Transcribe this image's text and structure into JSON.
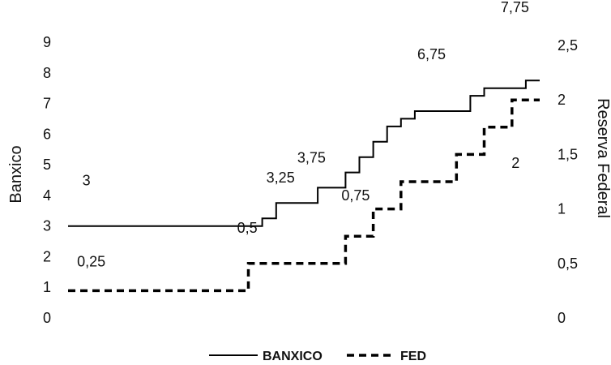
{
  "chart_data": {
    "type": "line",
    "ylabel_left": "Banxico",
    "ylabel_right": "Reserva Federal",
    "left_ticks": [
      "0",
      "1",
      "2",
      "3",
      "4",
      "5",
      "6",
      "7",
      "8",
      "9"
    ],
    "right_ticks": [
      "0",
      "0,5",
      "1",
      "1,5",
      "2",
      "2,5"
    ],
    "ylim_left": [
      0,
      9
    ],
    "ylim_right": [
      0,
      2.5
    ],
    "grid": false,
    "legend_position": "bottom",
    "x_steps": 34,
    "series": [
      {
        "name": "BANXICO",
        "axis": "left",
        "style": "solid",
        "color": "#000000",
        "values": [
          3,
          3,
          3,
          3,
          3,
          3,
          3,
          3,
          3,
          3,
          3,
          3,
          3,
          3,
          3.25,
          3.75,
          3.75,
          3.75,
          4.25,
          4.25,
          4.75,
          5.25,
          5.75,
          6.25,
          6.5,
          6.75,
          6.75,
          6.75,
          6.75,
          7.25,
          7.5,
          7.5,
          7.5,
          7.75
        ]
      },
      {
        "name": "FED",
        "axis": "right",
        "style": "dashed",
        "color": "#000000",
        "values": [
          0.25,
          0.25,
          0.25,
          0.25,
          0.25,
          0.25,
          0.25,
          0.25,
          0.25,
          0.25,
          0.25,
          0.25,
          0.25,
          0.5,
          0.5,
          0.5,
          0.5,
          0.5,
          0.5,
          0.5,
          0.75,
          0.75,
          1,
          1,
          1.25,
          1.25,
          1.25,
          1.25,
          1.5,
          1.5,
          1.75,
          1.75,
          2,
          2
        ]
      }
    ],
    "annotations": [
      {
        "text": "3",
        "series": 0,
        "index": 0
      },
      {
        "text": "3,25",
        "series": 0,
        "index": 14
      },
      {
        "text": "3,75",
        "series": 0,
        "index": 16
      },
      {
        "text": "6,75",
        "series": 0,
        "index": 25
      },
      {
        "text": "7,75",
        "series": 0,
        "index": 33
      },
      {
        "text": "0,25",
        "series": 1,
        "index": 0
      },
      {
        "text": "0,5",
        "series": 1,
        "index": 13
      },
      {
        "text": "0,75",
        "series": 1,
        "index": 20
      },
      {
        "text": "2",
        "series": 1,
        "index": 32
      }
    ]
  }
}
